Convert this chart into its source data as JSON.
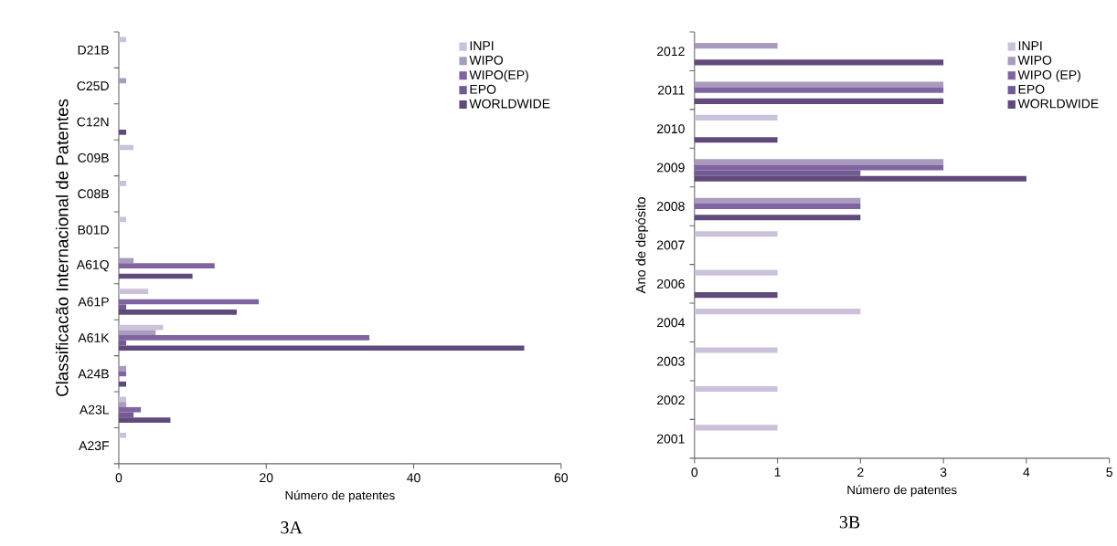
{
  "chart_data": [
    {
      "type": "bar",
      "orientation": "horizontal",
      "xlabel": "Número de patentes",
      "ylabel": "Classificacão Internacional de Patentes",
      "categories": [
        "D21B",
        "C25D",
        "C12N",
        "C09B",
        "C08B",
        "B01D",
        "A61Q",
        "A61P",
        "A61K",
        "A24B",
        "A23L",
        "A23F"
      ],
      "series": [
        {
          "name": "INPI",
          "color": "#ccc1da",
          "values": [
            1,
            null,
            null,
            2,
            1,
            1,
            null,
            4,
            6,
            null,
            1,
            1
          ]
        },
        {
          "name": "WIPO",
          "color": "#a99bbd",
          "values": [
            null,
            1,
            null,
            null,
            null,
            null,
            2,
            null,
            5,
            1,
            1,
            null
          ]
        },
        {
          "name": "WIPO(EP)",
          "color": "#8064a2",
          "values": [
            null,
            null,
            null,
            null,
            null,
            null,
            13,
            19,
            34,
            1,
            3,
            null
          ]
        },
        {
          "name": "EPO",
          "color": "#725a92",
          "values": [
            null,
            null,
            null,
            null,
            null,
            null,
            null,
            1,
            1,
            null,
            2,
            null
          ]
        },
        {
          "name": "WORLDWIDE",
          "color": "#604a7b",
          "values": [
            null,
            null,
            1,
            null,
            null,
            null,
            10,
            16,
            55,
            1,
            7,
            null
          ]
        }
      ],
      "xlim": [
        0,
        60
      ],
      "xticks": [
        0,
        20,
        40,
        60
      ],
      "legend": "top right",
      "annotations": [
        "3A"
      ]
    },
    {
      "type": "bar",
      "orientation": "horizontal",
      "xlabel": "Número  de  patentes",
      "ylabel": "Ano de depósito",
      "categories": [
        "2012",
        "2011",
        "2010",
        "2009",
        "2008",
        "2007",
        "2006",
        "2004",
        "2003",
        "2002",
        "2001"
      ],
      "series": [
        {
          "name": "INPI",
          "color": "#ccc1da",
          "values": [
            null,
            null,
            1,
            null,
            null,
            1,
            1,
            2,
            1,
            1,
            1
          ]
        },
        {
          "name": "WIPO",
          "color": "#a99bbd",
          "values": [
            1,
            3,
            null,
            3,
            2,
            null,
            null,
            null,
            null,
            null,
            null
          ]
        },
        {
          "name": "WIPO (EP)",
          "color": "#8064a2",
          "values": [
            null,
            3,
            null,
            3,
            2,
            null,
            null,
            null,
            null,
            null,
            null
          ]
        },
        {
          "name": "EPO",
          "color": "#725a92",
          "values": [
            null,
            null,
            null,
            2,
            null,
            null,
            null,
            null,
            null,
            null,
            null
          ]
        },
        {
          "name": "WORLDWIDE",
          "color": "#604a7b",
          "values": [
            3,
            3,
            1,
            4,
            2,
            null,
            1,
            null,
            null,
            null,
            null
          ]
        }
      ],
      "xlim": [
        0,
        5
      ],
      "xticks": [
        0,
        1,
        2,
        3,
        4,
        5
      ],
      "legend": "top right",
      "annotations": [
        "3B"
      ]
    }
  ]
}
